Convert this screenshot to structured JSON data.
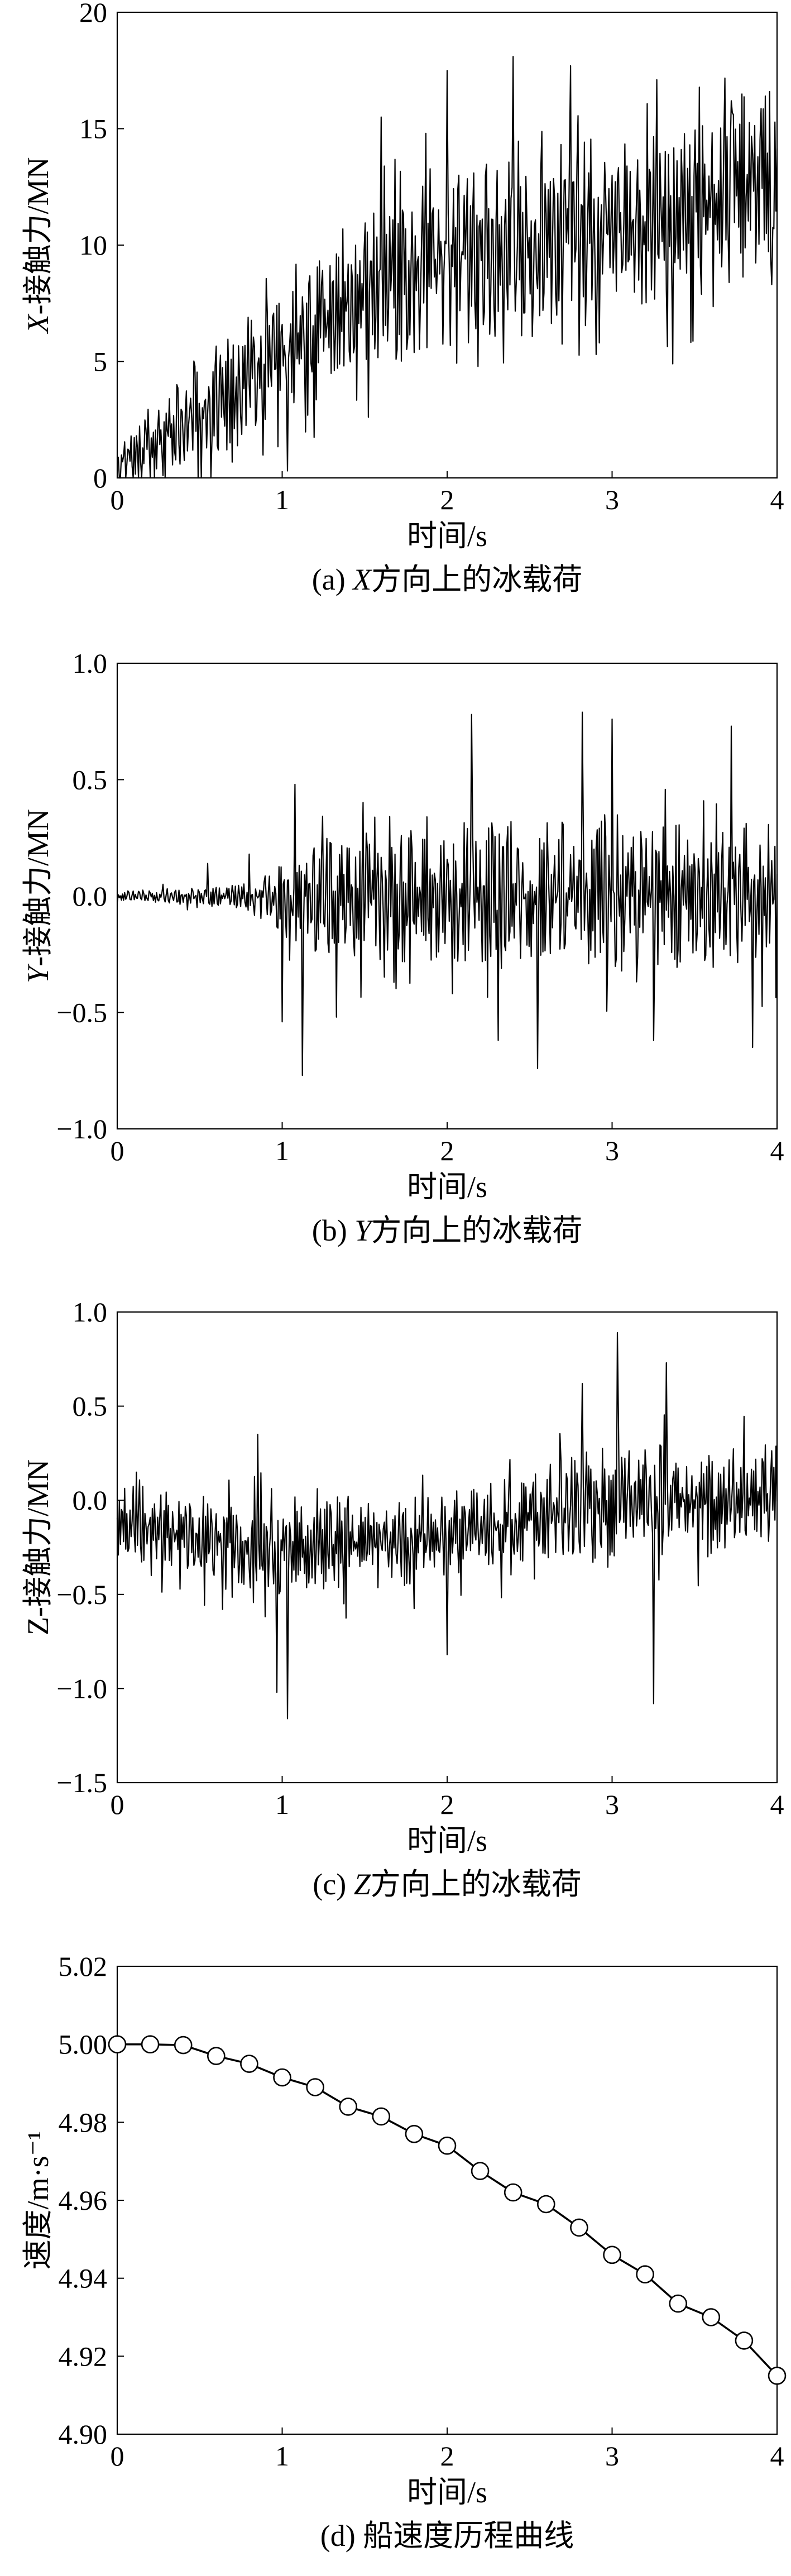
{
  "chart_data": [
    {
      "type": "line",
      "caption": "(a) X方向上的冰载荷",
      "caption_prefix": "(a) ",
      "caption_var": "X",
      "caption_suffix": "方向上的冰载荷",
      "xlabel": "时间/s",
      "ylabel": "X-接触力/MN",
      "ylabel_var": "X",
      "ylabel_rest": "-接触力/MN",
      "xlim": [
        0,
        4
      ],
      "ylim": [
        0,
        20
      ],
      "xticks": [
        0,
        1,
        2,
        3,
        4
      ],
      "yticks": [
        0,
        5,
        10,
        15,
        20
      ],
      "ytick_labels": [
        "0",
        "5",
        "10",
        "15",
        "20"
      ],
      "line_color": "#000000",
      "grid": false,
      "trend": [
        [
          0,
          0.6
        ],
        [
          0.5,
          2.8
        ],
        [
          1,
          5.3
        ],
        [
          1.5,
          8
        ],
        [
          2,
          9.5
        ],
        [
          2.5,
          10
        ],
        [
          3,
          10.6
        ],
        [
          3.5,
          11.6
        ],
        [
          4,
          12.8
        ]
      ],
      "spread": [
        [
          0,
          1.2
        ],
        [
          0.5,
          2.2
        ],
        [
          1,
          3.0
        ],
        [
          2,
          3.8
        ],
        [
          3,
          3.6
        ],
        [
          4,
          3.6
        ]
      ],
      "extremes": [
        [
          0.57,
          0
        ],
        [
          1.03,
          0.3
        ],
        [
          1.6,
          15.5
        ],
        [
          1.87,
          14.8
        ],
        [
          2.0,
          17.5
        ],
        [
          2.13,
          5.8
        ],
        [
          2.4,
          18.1
        ],
        [
          2.75,
          17.7
        ],
        [
          2.9,
          5.3
        ],
        [
          3.27,
          17.1
        ],
        [
          3.37,
          4.9
        ],
        [
          3.72,
          16.2
        ],
        [
          3.93,
          16.4
        ],
        [
          3.97,
          8.3
        ]
      ],
      "clip": [
        0,
        20
      ],
      "n_points": 620,
      "seed": 11
    },
    {
      "type": "line",
      "caption": "(b) Y方向上的冰载荷",
      "caption_prefix": "(b) ",
      "caption_var": "Y",
      "caption_suffix": "方向上的冰载荷",
      "xlabel": "时间/s",
      "ylabel": "Y-接触力/MN",
      "ylabel_var": "Y",
      "ylabel_rest": "-接触力/MN",
      "xlim": [
        0,
        4
      ],
      "ylim": [
        -1.0,
        1.0
      ],
      "xticks": [
        0,
        1,
        2,
        3,
        4
      ],
      "yticks": [
        -1.0,
        -0.5,
        0.0,
        0.5,
        1.0
      ],
      "ytick_labels": [
        "−1.0",
        "−0.5",
        "0.0",
        "0.5",
        "1.0"
      ],
      "line_color": "#000000",
      "grid": false,
      "trend": [
        [
          0,
          0
        ],
        [
          4,
          0
        ]
      ],
      "spread": [
        [
          0,
          0.02
        ],
        [
          0.7,
          0.05
        ],
        [
          0.95,
          0.12
        ],
        [
          1.05,
          0.25
        ],
        [
          2,
          0.3
        ],
        [
          4,
          0.32
        ]
      ],
      "extremes": [
        [
          0.55,
          0.14
        ],
        [
          0.8,
          0.18
        ],
        [
          1.0,
          -0.54
        ],
        [
          1.08,
          0.48
        ],
        [
          1.12,
          -0.77
        ],
        [
          1.33,
          -0.52
        ],
        [
          2.15,
          0.78
        ],
        [
          2.31,
          -0.62
        ],
        [
          2.55,
          -0.74
        ],
        [
          2.82,
          0.79
        ],
        [
          3.0,
          0.76
        ],
        [
          3.25,
          -0.62
        ],
        [
          3.72,
          0.73
        ],
        [
          3.85,
          -0.65
        ]
      ],
      "clip": [
        -0.8,
        0.8
      ],
      "n_points": 620,
      "seed": 23
    },
    {
      "type": "line",
      "caption": "(c) Z方向上的冰载荷",
      "caption_prefix": "(c) ",
      "caption_var": "Z",
      "caption_suffix": "方向上的冰载荷",
      "xlabel": "时间/s",
      "ylabel": "Z-接触力/MN",
      "ylabel_var": "",
      "ylabel_rest": "Z-接触力/MN",
      "xlim": [
        0,
        4
      ],
      "ylim": [
        -1.5,
        1.0
      ],
      "xticks": [
        0,
        1,
        2,
        3,
        4
      ],
      "yticks": [
        -1.5,
        -1.0,
        -0.5,
        0.0,
        0.5,
        1.0
      ],
      "ytick_labels": [
        "−1.5",
        "−1.0",
        "−0.5",
        "0.0",
        "0.5",
        "1.0"
      ],
      "line_color": "#000000",
      "grid": false,
      "trend": [
        [
          0,
          -0.1
        ],
        [
          0.5,
          -0.2
        ],
        [
          1,
          -0.25
        ],
        [
          1.5,
          -0.25
        ],
        [
          2,
          -0.2
        ],
        [
          2.5,
          -0.1
        ],
        [
          3,
          0.0
        ],
        [
          3.5,
          0.0
        ],
        [
          4,
          0.0
        ]
      ],
      "spread": [
        [
          0,
          0.2
        ],
        [
          1,
          0.25
        ],
        [
          2,
          0.22
        ],
        [
          3,
          0.3
        ],
        [
          4,
          0.28
        ]
      ],
      "extremes": [
        [
          0.85,
          0.35
        ],
        [
          0.97,
          -1.02
        ],
        [
          1.03,
          -1.16
        ],
        [
          2.0,
          -0.82
        ],
        [
          2.82,
          0.62
        ],
        [
          3.03,
          0.89
        ],
        [
          3.25,
          -1.08
        ],
        [
          3.33,
          0.73
        ]
      ],
      "clip": [
        -1.2,
        0.9
      ],
      "n_points": 620,
      "seed": 37
    },
    {
      "type": "line",
      "caption": "(d) 船速度历程曲线",
      "caption_prefix": "(d) ",
      "caption_var": "",
      "caption_suffix": "船速度历程曲线",
      "xlabel": "时间/s",
      "ylabel": "速度/m·s⁻¹",
      "ylabel_var": "",
      "ylabel_rest": "速度/m·s⁻¹",
      "xlim": [
        0,
        4
      ],
      "ylim": [
        4.9,
        5.02
      ],
      "xticks": [
        0,
        1,
        2,
        3,
        4
      ],
      "yticks": [
        4.9,
        4.92,
        4.94,
        4.96,
        4.98,
        5.0,
        5.02
      ],
      "ytick_labels": [
        "4.90",
        "4.92",
        "4.94",
        "4.96",
        "4.98",
        "5.00",
        "5.02"
      ],
      "line_color": "#000000",
      "marker": "open-circle",
      "grid": false,
      "x": [
        0,
        0.2,
        0.4,
        0.6,
        0.8,
        1.0,
        1.2,
        1.4,
        1.6,
        1.8,
        2.0,
        2.2,
        2.4,
        2.6,
        2.8,
        3.0,
        3.2,
        3.4,
        3.6,
        3.8,
        4.0
      ],
      "y": [
        5.0,
        5.0,
        4.9998,
        4.997,
        4.995,
        4.9915,
        4.989,
        4.984,
        4.9815,
        4.977,
        4.974,
        4.9675,
        4.962,
        4.959,
        4.953,
        4.946,
        4.941,
        4.9335,
        4.93,
        4.924,
        4.915
      ]
    }
  ]
}
